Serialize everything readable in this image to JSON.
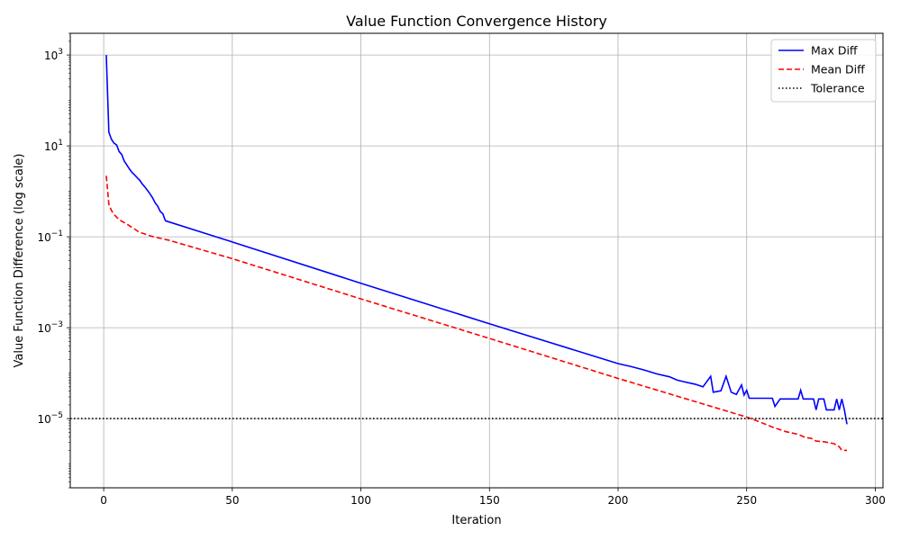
{
  "chart_data": {
    "type": "line",
    "title": "Value Function Convergence History",
    "xlabel": "Iteration",
    "ylabel": "Value Function Difference (log scale)",
    "yscale": "log",
    "xlim": [
      -13,
      303
    ],
    "ylim": [
      3e-07,
      3000
    ],
    "xticks": [
      0,
      50,
      100,
      150,
      200,
      250,
      300
    ],
    "yticks": [
      {
        "value": 1000,
        "base": "10",
        "exp": "3"
      },
      {
        "value": 10,
        "base": "10",
        "exp": "1"
      },
      {
        "value": 0.1,
        "base": "10",
        "exp": "−1"
      },
      {
        "value": 0.001,
        "base": "10",
        "exp": "−3"
      },
      {
        "value": 1e-05,
        "base": "10",
        "exp": "−5"
      }
    ],
    "grid": true,
    "legend_position": "top-right",
    "series": [
      {
        "name": "Max Diff",
        "color": "#0000ff",
        "style": "solid",
        "points": [
          [
            1,
            1000
          ],
          [
            2,
            20
          ],
          [
            3,
            14
          ],
          [
            4,
            11.5
          ],
          [
            5,
            10.5
          ],
          [
            6,
            7.5
          ],
          [
            7,
            6.5
          ],
          [
            8,
            4.6
          ],
          [
            9,
            3.8
          ],
          [
            10,
            3.1
          ],
          [
            11,
            2.6
          ],
          [
            12,
            2.3
          ],
          [
            13,
            2.0
          ],
          [
            14,
            1.75
          ],
          [
            15,
            1.45
          ],
          [
            16,
            1.25
          ],
          [
            17,
            1.05
          ],
          [
            18,
            0.88
          ],
          [
            19,
            0.72
          ],
          [
            20,
            0.56
          ],
          [
            21,
            0.47
          ],
          [
            22,
            0.36
          ],
          [
            23,
            0.32
          ],
          [
            24,
            0.225
          ],
          [
            50,
            0.077
          ],
          [
            100,
            0.0095
          ],
          [
            150,
            0.00122
          ],
          [
            200,
            0.000162
          ],
          [
            205,
            0.00014
          ],
          [
            210,
            0.000118
          ],
          [
            215,
            9.65e-05
          ],
          [
            220,
            8.3e-05
          ],
          [
            223,
            7e-05
          ],
          [
            226,
            6.4e-05
          ],
          [
            230,
            5.7e-05
          ],
          [
            233,
            5e-05
          ],
          [
            236,
            8.5e-05
          ],
          [
            237,
            3.8e-05
          ],
          [
            240,
            4.1e-05
          ],
          [
            242,
            8.5e-05
          ],
          [
            244,
            3.8e-05
          ],
          [
            246,
            3.4e-05
          ],
          [
            248,
            5.5e-05
          ],
          [
            249,
            3.3e-05
          ],
          [
            250,
            4.2e-05
          ],
          [
            251,
            2.8e-05
          ],
          [
            260,
            2.8e-05
          ],
          [
            261,
            1.85e-05
          ],
          [
            263,
            2.7e-05
          ],
          [
            270,
            2.7e-05
          ],
          [
            271,
            4.2e-05
          ],
          [
            272,
            2.7e-05
          ],
          [
            276,
            2.7e-05
          ],
          [
            277,
            1.55e-05
          ],
          [
            278,
            2.7e-05
          ],
          [
            280,
            2.7e-05
          ],
          [
            281,
            1.55e-05
          ],
          [
            284,
            1.55e-05
          ],
          [
            285,
            2.7e-05
          ],
          [
            286,
            1.55e-05
          ],
          [
            287,
            2.7e-05
          ],
          [
            288,
            1.55e-05
          ],
          [
            289,
            7.5e-06
          ]
        ]
      },
      {
        "name": "Mean Diff",
        "color": "#ff0000",
        "style": "dashed",
        "points": [
          [
            1,
            2.2
          ],
          [
            2,
            0.52
          ],
          [
            3,
            0.38
          ],
          [
            4,
            0.31
          ],
          [
            5,
            0.27
          ],
          [
            6,
            0.24
          ],
          [
            7,
            0.22
          ],
          [
            8,
            0.205
          ],
          [
            9,
            0.19
          ],
          [
            10,
            0.175
          ],
          [
            11,
            0.16
          ],
          [
            12,
            0.148
          ],
          [
            13,
            0.135
          ],
          [
            14,
            0.125
          ],
          [
            16,
            0.115
          ],
          [
            18,
            0.105
          ],
          [
            20,
            0.098
          ],
          [
            25,
            0.085
          ],
          [
            50,
            0.033
          ],
          [
            100,
            0.0043
          ],
          [
            150,
            0.00058
          ],
          [
            200,
            7.65e-05
          ],
          [
            250,
            1.08e-05
          ],
          [
            255,
            8.5e-06
          ],
          [
            260,
            6.5e-06
          ],
          [
            265,
            5.2e-06
          ],
          [
            270,
            4.5e-06
          ],
          [
            273,
            3.8e-06
          ],
          [
            275,
            3.7e-06
          ],
          [
            277,
            3.2e-06
          ],
          [
            280,
            3.1e-06
          ],
          [
            284,
            2.8e-06
          ],
          [
            286,
            2.4e-06
          ],
          [
            287,
            2e-06
          ],
          [
            289,
            2e-06
          ]
        ]
      },
      {
        "name": "Tolerance",
        "color": "#000000",
        "style": "dotted",
        "hline": 1e-05
      }
    ]
  }
}
